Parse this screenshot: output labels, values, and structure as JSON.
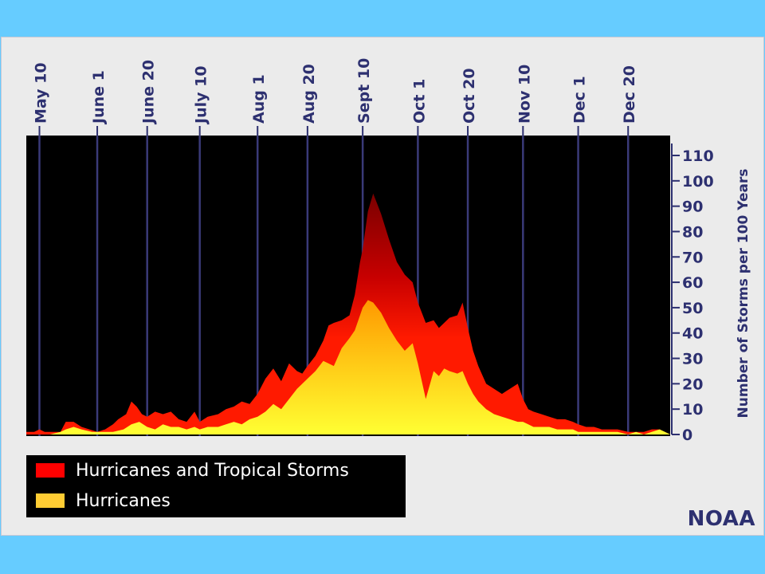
{
  "colors": {
    "background": "#66ccff",
    "panel": "#ebebeb",
    "plot_background": "#000000",
    "gridline": "#3a3a78",
    "axis_text": "#2d3070",
    "storms_dark": "#9c0000",
    "storms_light": "#ff1a00",
    "hurricanes_dark": "#ff9900",
    "hurricanes_light": "#ffff33",
    "legend_storms": "#ff0000",
    "legend_hurricanes": "#ffcc33"
  },
  "legend": {
    "storms_label": "Hurricanes and Tropical Storms",
    "hurricanes_label": "Hurricanes"
  },
  "logo": "NOAA",
  "chart_data": {
    "type": "area",
    "ylabel": "Number of Storms per 100 Years",
    "ylim": [
      0,
      115
    ],
    "yticks": [
      0,
      10,
      20,
      30,
      40,
      50,
      60,
      70,
      80,
      90,
      100,
      110
    ],
    "grid": "vertical",
    "ytick_position": "right",
    "xtick_position": "top",
    "xticks": [
      {
        "label": "May 10",
        "day": 130
      },
      {
        "label": "June 1",
        "day": 152
      },
      {
        "label": "June 20",
        "day": 171
      },
      {
        "label": "July 10",
        "day": 191
      },
      {
        "label": "Aug 1",
        "day": 213
      },
      {
        "label": "Aug 20",
        "day": 232
      },
      {
        "label": "Sept 10",
        "day": 253
      },
      {
        "label": "Oct 1",
        "day": 274
      },
      {
        "label": "Oct 20",
        "day": 293
      },
      {
        "label": "Nov 10",
        "day": 314
      },
      {
        "label": "Dec 1",
        "day": 335
      },
      {
        "label": "Dec 20",
        "day": 354
      }
    ],
    "xlim": [
      125,
      370
    ],
    "series": [
      {
        "name": "Hurricanes and Tropical Storms",
        "x": [
          125,
          128,
          130,
          132,
          134,
          138,
          140,
          143,
          146,
          149,
          152,
          155,
          158,
          160,
          163,
          165,
          167,
          169,
          171,
          174,
          177,
          180,
          183,
          186,
          189,
          191,
          194,
          198,
          201,
          204,
          207,
          210,
          213,
          216,
          219,
          222,
          225,
          228,
          230,
          232,
          235,
          238,
          240,
          242,
          245,
          248,
          250,
          252,
          253,
          255,
          257,
          260,
          263,
          266,
          269,
          272,
          274,
          277,
          280,
          282,
          284,
          286,
          289,
          291,
          293,
          295,
          297,
          300,
          303,
          306,
          309,
          312,
          314,
          316,
          318,
          321,
          324,
          327,
          330,
          333,
          335,
          338,
          341,
          344,
          347,
          350,
          354,
          357,
          360,
          363,
          366,
          368,
          370
        ],
        "values": [
          1,
          1,
          2,
          1,
          1,
          1,
          5,
          5,
          3,
          2,
          1,
          2,
          4,
          6,
          8,
          13,
          11,
          8,
          7,
          9,
          8,
          9,
          6,
          5,
          9,
          5,
          7,
          8,
          10,
          11,
          13,
          12,
          16,
          22,
          26,
          21,
          28,
          25,
          24,
          27,
          31,
          37,
          43,
          44,
          45,
          47,
          55,
          68,
          73,
          88,
          95,
          87,
          77,
          68,
          63,
          60,
          52,
          44,
          45,
          42,
          44,
          46,
          47,
          52,
          42,
          33,
          27,
          20,
          18,
          16,
          18,
          20,
          14,
          10,
          9,
          8,
          7,
          6,
          6,
          5,
          4,
          3,
          3,
          2,
          2,
          2,
          1,
          1,
          1,
          2,
          2,
          1,
          0
        ]
      },
      {
        "name": "Hurricanes",
        "x": [
          125,
          130,
          134,
          138,
          140,
          143,
          146,
          150,
          154,
          158,
          162,
          165,
          168,
          171,
          174,
          177,
          180,
          183,
          186,
          189,
          191,
          194,
          198,
          201,
          204,
          207,
          210,
          213,
          216,
          219,
          222,
          225,
          228,
          230,
          232,
          235,
          238,
          240,
          242,
          245,
          248,
          250,
          252,
          253,
          255,
          257,
          260,
          263,
          266,
          269,
          272,
          274,
          277,
          280,
          282,
          284,
          286,
          289,
          291,
          293,
          295,
          297,
          300,
          303,
          306,
          309,
          312,
          314,
          316,
          318,
          321,
          324,
          327,
          330,
          333,
          335,
          338,
          341,
          344,
          347,
          350,
          354,
          357,
          360,
          363,
          366,
          368,
          370
        ],
        "values": [
          0,
          0,
          0,
          1,
          2,
          3,
          2,
          1,
          1,
          1,
          2,
          4,
          5,
          3,
          2,
          4,
          3,
          3,
          2,
          3,
          2,
          3,
          3,
          4,
          5,
          4,
          6,
          7,
          9,
          12,
          10,
          14,
          18,
          20,
          22,
          25,
          29,
          28,
          27,
          34,
          38,
          41,
          47,
          50,
          53,
          52,
          48,
          42,
          37,
          33,
          36,
          28,
          14,
          25,
          23,
          26,
          25,
          24,
          25,
          20,
          16,
          13,
          10,
          8,
          7,
          6,
          5,
          5,
          4,
          3,
          3,
          3,
          2,
          2,
          2,
          1,
          1,
          1,
          1,
          1,
          1,
          0,
          1,
          0,
          1,
          2,
          1,
          0
        ]
      }
    ]
  }
}
